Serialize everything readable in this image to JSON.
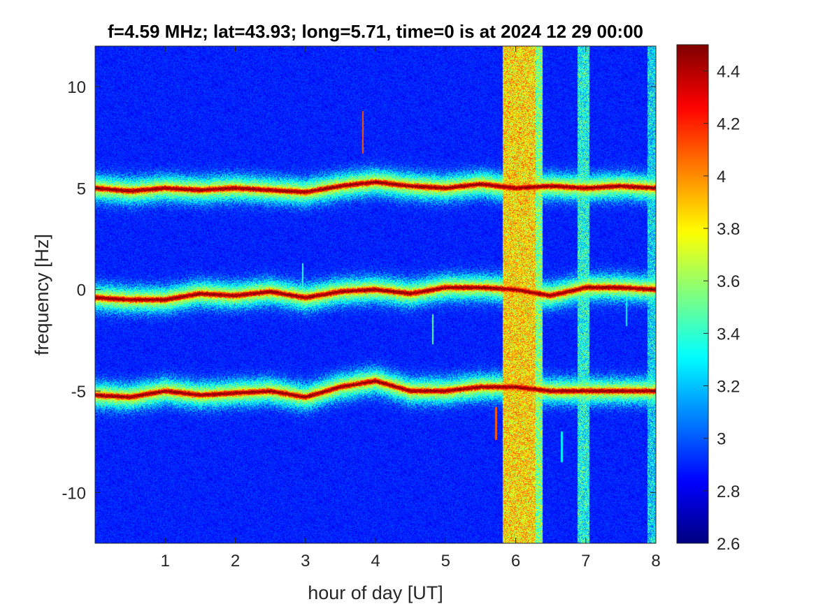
{
  "chart_data": {
    "type": "heatmap",
    "title": "f=4.59 MHz;  lat=43.93; long=5.71, time=0 is at 2024 12 29 00:00",
    "xlabel": "hour of day [UT]",
    "ylabel": "frequency [Hz]",
    "xlim": [
      0,
      8
    ],
    "ylim": [
      -12.5,
      12.0
    ],
    "xticks": [
      1,
      2,
      3,
      4,
      5,
      6,
      7,
      8
    ],
    "xtick_labels": [
      "1",
      "2",
      "3",
      "4",
      "5",
      "6",
      "7",
      "8"
    ],
    "yticks": [
      -10,
      -5,
      0,
      5,
      10
    ],
    "ytick_labels": [
      "-10",
      "-5",
      "0",
      "5",
      "10"
    ],
    "colorbar": {
      "limits": [
        2.6,
        4.5
      ],
      "ticks": [
        2.6,
        2.8,
        3.0,
        3.2,
        3.4,
        3.6,
        3.8,
        4.0,
        4.2,
        4.4
      ],
      "tick_labels": [
        "2.6",
        "2.8",
        "3",
        "3.2",
        "3.4",
        "3.6",
        "3.8",
        "4",
        "4.2",
        "4.4"
      ],
      "colormap": "jet"
    },
    "background_level": 2.8,
    "noise_amplitude": 0.25,
    "ridges": [
      {
        "peak": 4.5,
        "width_hz": 0.22,
        "track": [
          [
            0.0,
            5.0
          ],
          [
            0.5,
            4.85
          ],
          [
            1.0,
            5.0
          ],
          [
            1.5,
            4.9
          ],
          [
            2.0,
            5.0
          ],
          [
            2.5,
            4.9
          ],
          [
            3.0,
            4.8
          ],
          [
            3.5,
            5.1
          ],
          [
            4.0,
            5.3
          ],
          [
            4.5,
            5.1
          ],
          [
            5.0,
            5.0
          ],
          [
            5.5,
            5.2
          ],
          [
            6.0,
            5.0
          ],
          [
            6.5,
            5.1
          ],
          [
            7.0,
            5.0
          ],
          [
            7.5,
            5.1
          ],
          [
            8.0,
            5.0
          ]
        ]
      },
      {
        "peak": 4.5,
        "width_hz": 0.22,
        "track": [
          [
            0.0,
            -0.4
          ],
          [
            0.5,
            -0.5
          ],
          [
            1.0,
            -0.5
          ],
          [
            1.5,
            -0.2
          ],
          [
            2.0,
            -0.3
          ],
          [
            2.5,
            -0.1
          ],
          [
            3.0,
            -0.4
          ],
          [
            3.5,
            -0.1
          ],
          [
            4.0,
            0.0
          ],
          [
            4.5,
            -0.2
          ],
          [
            5.0,
            0.1
          ],
          [
            5.5,
            0.1
          ],
          [
            6.0,
            0.0
          ],
          [
            6.5,
            -0.3
          ],
          [
            7.0,
            0.1
          ],
          [
            7.5,
            0.1
          ],
          [
            8.0,
            0.0
          ]
        ]
      },
      {
        "peak": 4.5,
        "width_hz": 0.22,
        "track": [
          [
            0.0,
            -5.2
          ],
          [
            0.5,
            -5.3
          ],
          [
            1.0,
            -5.0
          ],
          [
            1.5,
            -5.2
          ],
          [
            2.0,
            -5.1
          ],
          [
            2.5,
            -5.0
          ],
          [
            3.0,
            -5.3
          ],
          [
            3.5,
            -4.8
          ],
          [
            4.0,
            -4.5
          ],
          [
            4.5,
            -5.0
          ],
          [
            5.0,
            -5.0
          ],
          [
            5.5,
            -4.8
          ],
          [
            6.0,
            -4.8
          ],
          [
            6.5,
            -5.0
          ],
          [
            7.0,
            -5.0
          ],
          [
            7.5,
            -5.0
          ],
          [
            8.0,
            -5.0
          ]
        ]
      }
    ],
    "broadband_bands": [
      {
        "x_start": 5.82,
        "x_end": 6.28,
        "level": 3.85
      },
      {
        "x_start": 6.28,
        "x_end": 6.38,
        "level": 3.55
      },
      {
        "x_start": 6.88,
        "x_end": 7.05,
        "level": 3.35
      },
      {
        "x_start": 7.88,
        "x_end": 8.0,
        "level": 3.25
      }
    ],
    "impulses": [
      {
        "x": 3.82,
        "y_start": 6.7,
        "y_end": 8.8,
        "level": 4.1
      },
      {
        "x": 2.96,
        "y_start": 0.0,
        "y_end": 1.3,
        "level": 3.4
      },
      {
        "x": 4.82,
        "y_start": -2.7,
        "y_end": -1.2,
        "level": 3.5
      },
      {
        "x": 5.72,
        "y_start": -7.4,
        "y_end": -5.8,
        "level": 4.1
      },
      {
        "x": 6.66,
        "y_start": -8.5,
        "y_end": -7.0,
        "level": 3.3
      },
      {
        "x": 7.58,
        "y_start": -1.8,
        "y_end": 0.0,
        "level": 3.3
      }
    ]
  }
}
